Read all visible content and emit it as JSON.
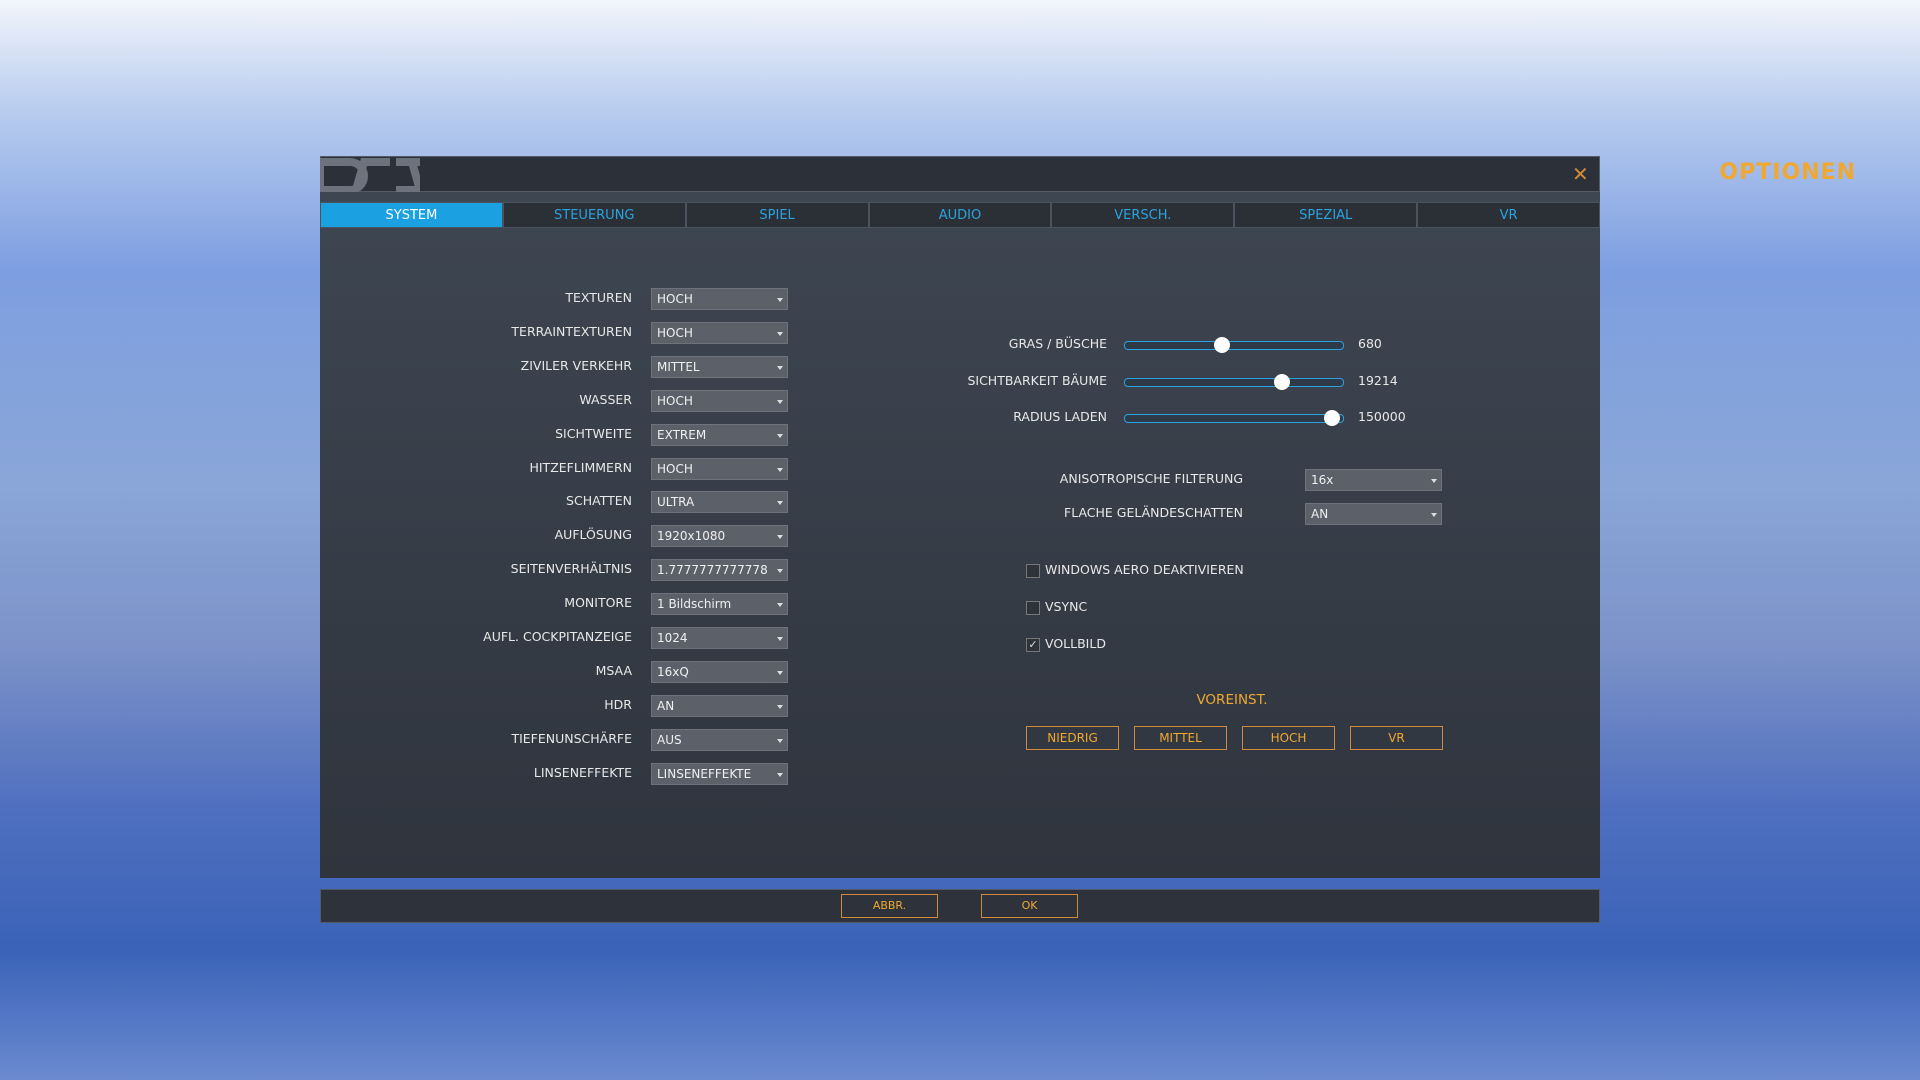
{
  "header": {
    "title": "OPTIONEN"
  },
  "tabs": [
    {
      "label": "SYSTEM",
      "active": true
    },
    {
      "label": "STEUERUNG",
      "active": false
    },
    {
      "label": "SPIEL",
      "active": false
    },
    {
      "label": "AUDIO",
      "active": false
    },
    {
      "label": "VERSCH.",
      "active": false
    },
    {
      "label": "SPEZIAL",
      "active": false
    },
    {
      "label": "VR",
      "active": false
    }
  ],
  "settings": [
    {
      "label": "TEXTUREN",
      "value": "HOCH"
    },
    {
      "label": "TERRAINTEXTUREN",
      "value": "HOCH"
    },
    {
      "label": "ZIVILER VERKEHR",
      "value": "MITTEL"
    },
    {
      "label": "WASSER",
      "value": "HOCH"
    },
    {
      "label": "SICHTWEITE",
      "value": "EXTREM"
    },
    {
      "label": "HITZEFLIMMERN",
      "value": "HOCH"
    },
    {
      "label": "SCHATTEN",
      "value": "ULTRA"
    },
    {
      "label": "AUFLÖSUNG",
      "value": "1920x1080"
    },
    {
      "label": "SEITENVERHÄLTNIS",
      "value": "1.7777777777778"
    },
    {
      "label": "MONITORE",
      "value": "1 Bildschirm"
    },
    {
      "label": "AUFL. COCKPITANZEIGE",
      "value": "1024"
    },
    {
      "label": "MSAA",
      "value": "16xQ"
    },
    {
      "label": "HDR",
      "value": "AN"
    },
    {
      "label": "TIEFENUNSCHÄRFE",
      "value": "AUS"
    },
    {
      "label": "LINSENEFFEKTE",
      "value": "LINSENEFFEKTE"
    }
  ],
  "sliders": [
    {
      "label": "GRAS / BÜSCHE",
      "value": "680"
    },
    {
      "label": "SICHTBARKEIT BÄUME",
      "value": "19214"
    },
    {
      "label": "RADIUS LADEN",
      "value": "150000"
    }
  ],
  "extra_settings": [
    {
      "label": "ANISOTROPISCHE FILTERUNG",
      "value": "16x"
    },
    {
      "label": "FLACHE GELÄNDESCHATTEN",
      "value": "AN"
    }
  ],
  "checkboxes": [
    {
      "label": "WINDOWS AERO DEAKTIVIEREN",
      "checked": false
    },
    {
      "label": "VSYNC",
      "checked": false
    },
    {
      "label": "VOLLBILD",
      "checked": true
    }
  ],
  "presets": {
    "title": "VOREINST.",
    "buttons": [
      "NIEDRIG",
      "MITTEL",
      "HOCH",
      "VR"
    ]
  },
  "footer": {
    "buttons": [
      "ABBR.",
      "OK"
    ]
  }
}
